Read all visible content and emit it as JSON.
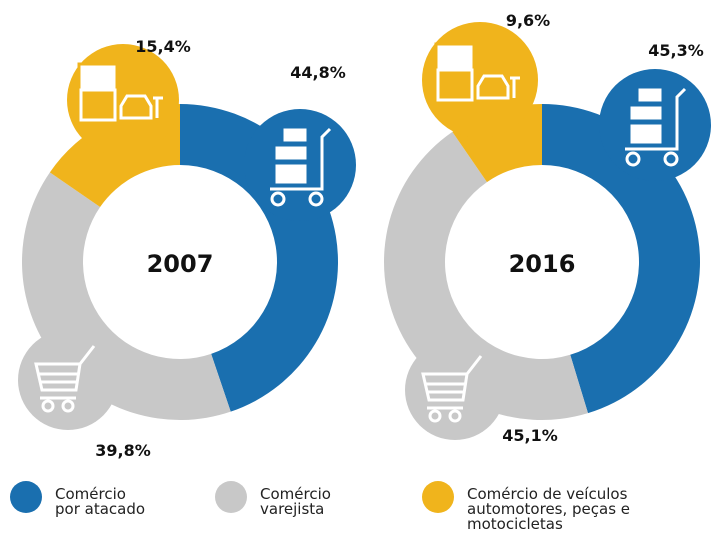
{
  "legend": {
    "labels": [
      "Comércio\npor atacado",
      "Comércio\nvarejista",
      "Comércio de veículos\nautomotores, peças e\nmotocicletas"
    ],
    "colors": [
      "#1a6faf",
      "#c8c8c8",
      "#f0b41c"
    ]
  },
  "chart_data": [
    {
      "type": "pie",
      "title": "2007",
      "values": [
        44.8,
        39.8,
        15.4
      ],
      "value_labels": [
        "44,8%",
        "39,8%",
        "15,4%"
      ]
    },
    {
      "type": "pie",
      "title": "2016",
      "values": [
        45.3,
        45.1,
        9.6
      ],
      "value_labels": [
        "45,3%",
        "45,1%",
        "9,6%"
      ]
    }
  ]
}
